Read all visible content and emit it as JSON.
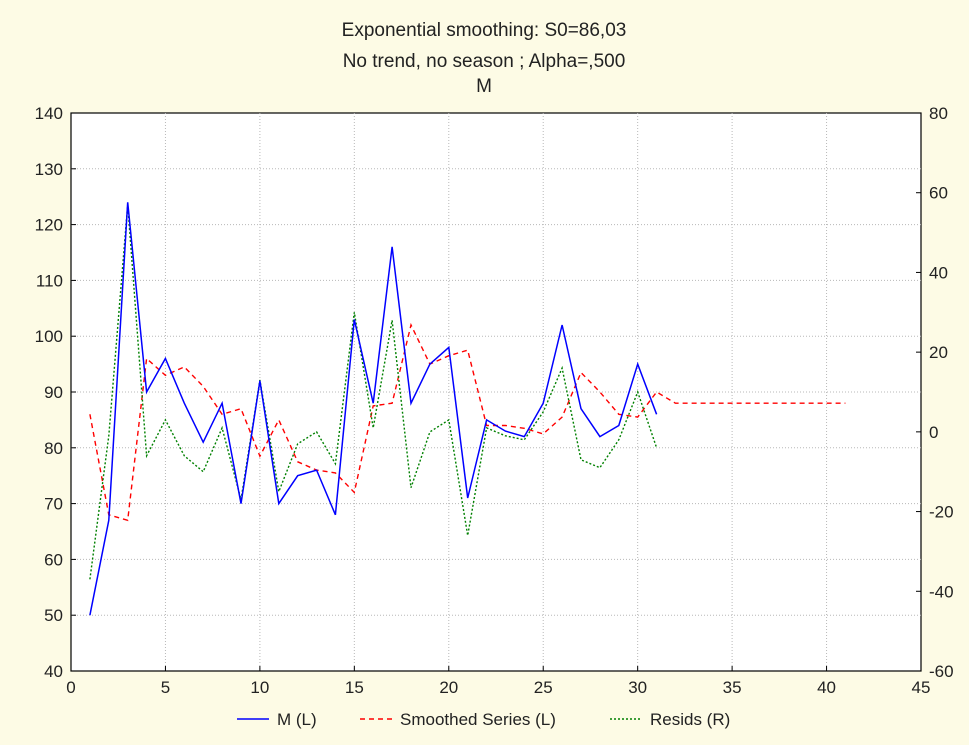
{
  "chart_data": {
    "type": "line",
    "title_lines": [
      "Exponential smoothing:  S0=86,03",
      "No trend, no season   ; Alpha=,500",
      "M"
    ],
    "x_ticks": [
      "0",
      "5",
      "10",
      "15",
      "20",
      "25",
      "30",
      "35",
      "40",
      "45"
    ],
    "y_left_ticks": [
      "40",
      "50",
      "60",
      "70",
      "80",
      "90",
      "100",
      "110",
      "120",
      "130",
      "140"
    ],
    "y_right_ticks": [
      "-60",
      "-40",
      "-20",
      "0",
      "20",
      "40",
      "60",
      "80"
    ],
    "xlim": [
      0,
      45
    ],
    "ylim_left": [
      40,
      140
    ],
    "ylim_right": [
      -60,
      80
    ],
    "grid": true,
    "legend_position": "bottom",
    "series": [
      {
        "name": "M (L)",
        "axis": "left",
        "color": "#0000ff",
        "style": "solid",
        "x": [
          1,
          2,
          3,
          4,
          5,
          6,
          7,
          8,
          9,
          10,
          11,
          12,
          13,
          14,
          15,
          16,
          17,
          18,
          19,
          20,
          21,
          22,
          23,
          24,
          25,
          26,
          27,
          28,
          29,
          30,
          31
        ],
        "y": [
          50,
          67,
          124,
          90,
          96,
          88,
          81,
          88,
          70,
          92,
          70,
          75,
          76,
          68,
          103,
          88,
          116,
          88,
          95,
          98,
          71,
          85,
          83,
          82,
          88,
          102,
          87,
          82,
          84,
          95,
          86
        ]
      },
      {
        "name": "Smoothed Series (L)",
        "axis": "left",
        "color": "#ff0000",
        "style": "dashed",
        "x": [
          1,
          2,
          3,
          4,
          5,
          6,
          7,
          8,
          9,
          10,
          11,
          12,
          13,
          14,
          15,
          16,
          17,
          18,
          19,
          20,
          21,
          22,
          23,
          24,
          25,
          26,
          27,
          28,
          29,
          30,
          31,
          32,
          33,
          34,
          35,
          36,
          37,
          38,
          39,
          40,
          41
        ],
        "y": [
          86,
          68,
          67,
          96,
          93,
          94.5,
          91,
          86,
          87,
          78.5,
          85,
          77.5,
          76,
          75.5,
          72,
          87.5,
          88,
          102,
          95,
          96.5,
          97.5,
          84,
          84,
          83.5,
          82.5,
          85.5,
          93.5,
          90,
          86,
          85.5,
          90,
          88,
          88,
          88,
          88,
          88,
          88,
          88,
          88,
          88,
          88
        ]
      },
      {
        "name": "Resids (R)",
        "axis": "right",
        "color": "#008000",
        "style": "dotted",
        "x": [
          1,
          2,
          3,
          4,
          5,
          6,
          7,
          8,
          9,
          10,
          11,
          12,
          13,
          14,
          15,
          16,
          17,
          18,
          19,
          20,
          21,
          22,
          23,
          24,
          25,
          26,
          27,
          28,
          29,
          30,
          31
        ],
        "y": [
          -37,
          -1,
          57,
          -6,
          3,
          -6,
          -10,
          1,
          -17,
          13,
          -15,
          -3,
          0,
          -8,
          30,
          1,
          28,
          -14,
          0,
          3,
          -26,
          1,
          -1,
          -2,
          5,
          16,
          -7,
          -9,
          -2,
          10,
          -4
        ]
      }
    ]
  }
}
